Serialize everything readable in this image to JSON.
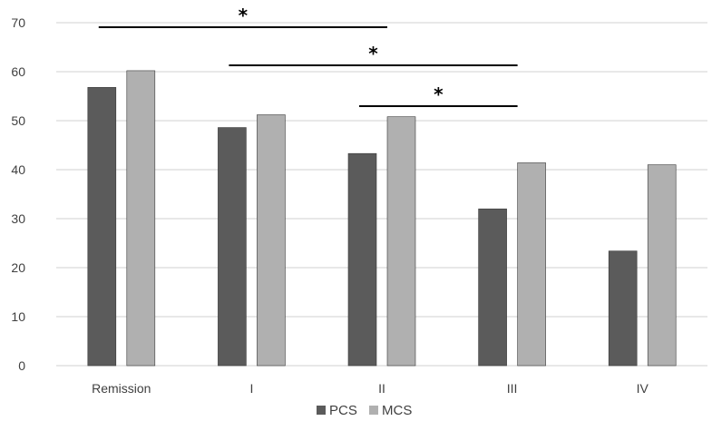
{
  "chart_data": {
    "type": "bar",
    "title": "",
    "xlabel": "",
    "ylabel": "",
    "categories": [
      "Remission",
      "I",
      "II",
      "III",
      "IV"
    ],
    "series": [
      {
        "name": "PCS",
        "values": [
          56.8,
          48.6,
          43.3,
          32.0,
          23.4
        ],
        "color": "#5b5b5b"
      },
      {
        "name": "MCS",
        "values": [
          60.2,
          51.2,
          50.8,
          41.4,
          41.0
        ],
        "color": "#b0b0b0"
      }
    ],
    "ylim": [
      0,
      70
    ],
    "yticks": [
      0,
      10,
      20,
      30,
      40,
      50,
      60,
      70
    ],
    "grid": true,
    "legend": "bottom-center",
    "annotations": [
      {
        "label": "*",
        "from_category": "Remission",
        "to_category": "II"
      },
      {
        "label": "*",
        "from_category": "I",
        "to_category": "III"
      },
      {
        "label": "*",
        "from_category": "II",
        "to_category": "III"
      }
    ]
  }
}
